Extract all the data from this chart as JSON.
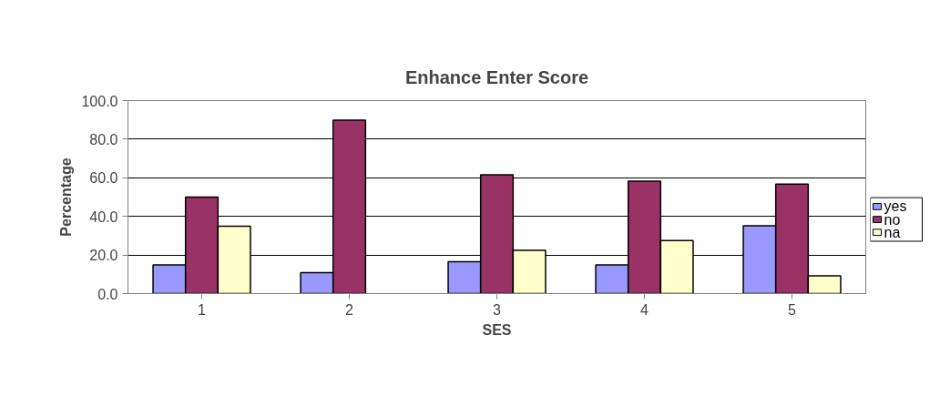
{
  "chart_data": {
    "type": "bar",
    "title": "Enhance Enter Score",
    "xlabel": "SES",
    "ylabel": "Percentage",
    "categories": [
      "1",
      "2",
      "3",
      "4",
      "5"
    ],
    "series": [
      {
        "name": "yes",
        "color": "#9999ff",
        "values": [
          14.9,
          10.8,
          16.5,
          14.9,
          35.1
        ]
      },
      {
        "name": "no",
        "color": "#993366",
        "values": [
          50.0,
          89.8,
          61.6,
          58.3,
          56.7
        ]
      },
      {
        "name": "na",
        "color": "#ffffcc",
        "values": [
          34.9,
          null,
          22.4,
          27.5,
          9.2
        ]
      }
    ],
    "ylim": [
      0,
      100
    ],
    "yticks": [
      {
        "value": 0,
        "label": "0.0"
      },
      {
        "value": 20,
        "label": "20.0"
      },
      {
        "value": 40,
        "label": "40.0"
      },
      {
        "value": 60,
        "label": "60.0"
      },
      {
        "value": 80,
        "label": "80.0"
      },
      {
        "value": 100,
        "label": "100.0"
      }
    ],
    "grid": "y",
    "legend": "right"
  }
}
